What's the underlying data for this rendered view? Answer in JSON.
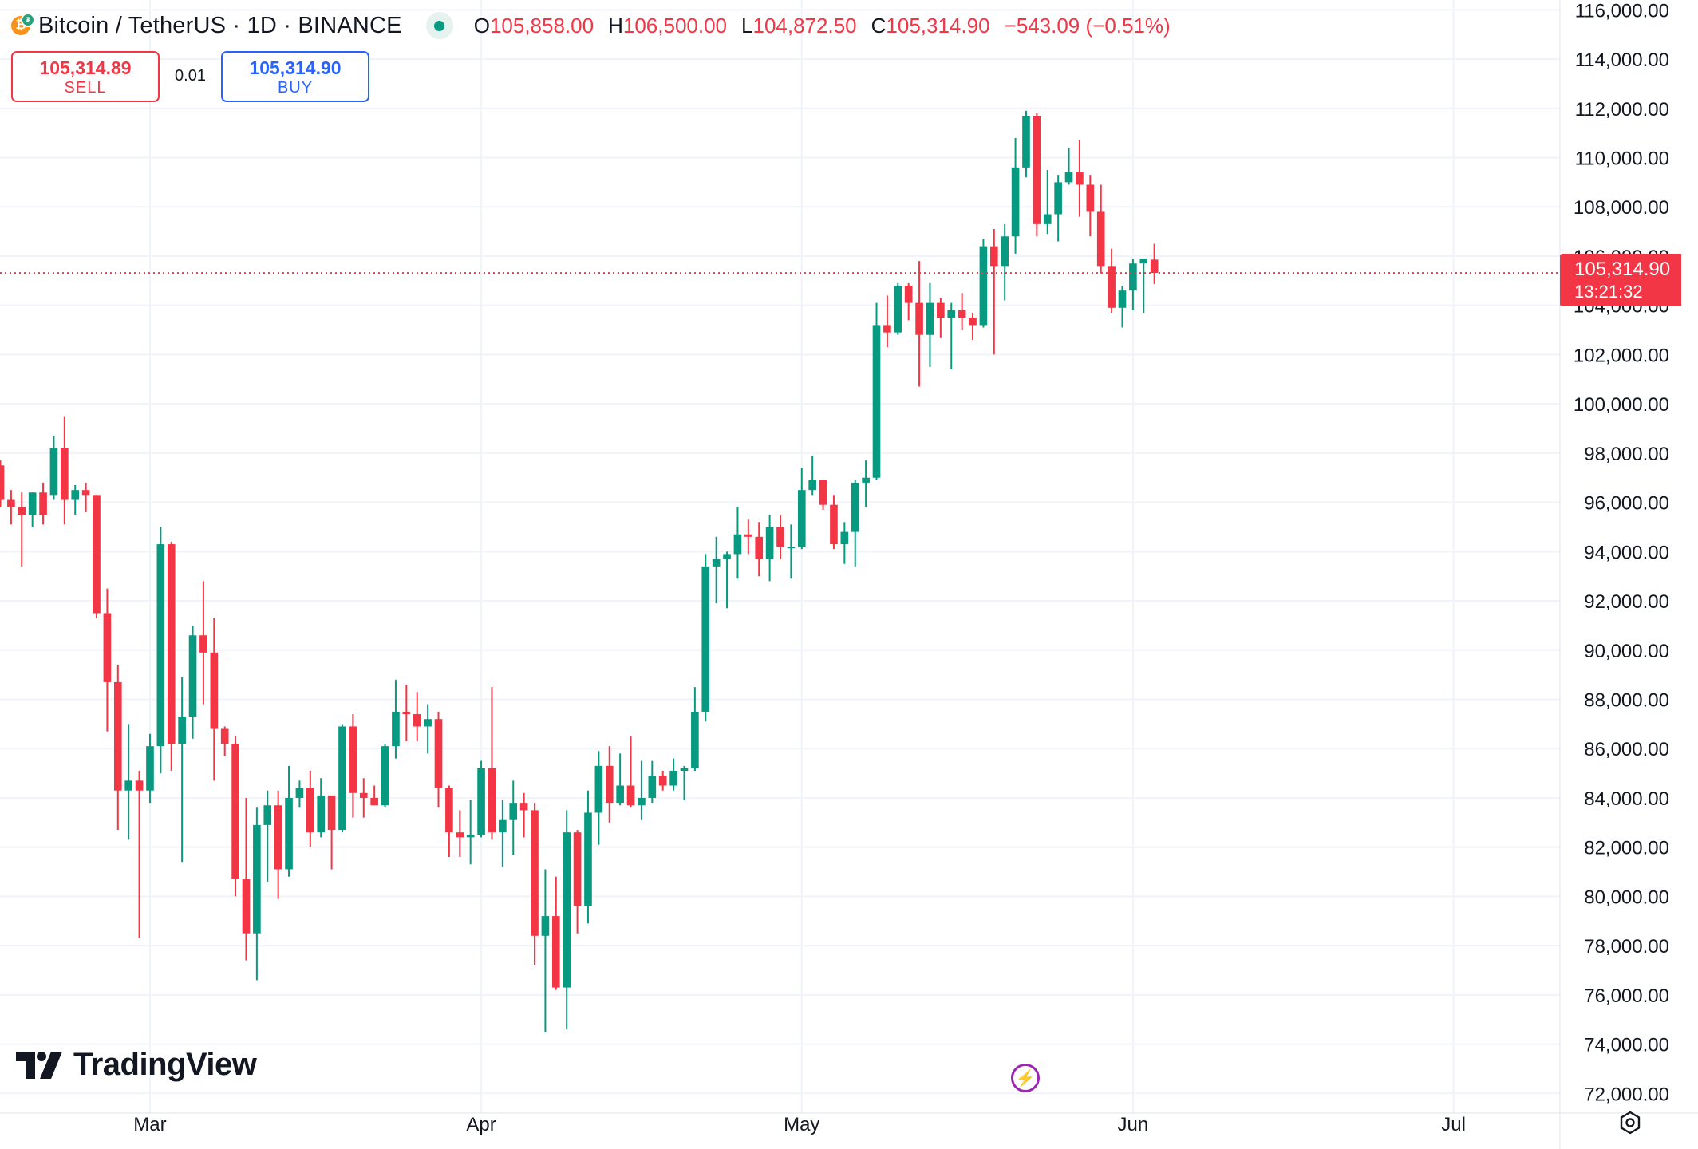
{
  "header": {
    "symbol_title": "Bitcoin / TetherUS · 1D · BINANCE",
    "ohlc": [
      {
        "k": "O",
        "v": "105,858.00"
      },
      {
        "k": "H",
        "v": "106,500.00"
      },
      {
        "k": "L",
        "v": "104,872.50"
      },
      {
        "k": "C",
        "v": "105,314.90"
      }
    ],
    "change": "−543.09 (−0.51%)"
  },
  "trade": {
    "sell_price": "105,314.89",
    "sell_label": "SELL",
    "quantity": "0.01",
    "buy_price": "105,314.90",
    "buy_label": "BUY"
  },
  "price_tag": {
    "price": "105,314.90",
    "countdown": "13:21:32"
  },
  "branding": {
    "logo_text": "TradingView"
  },
  "colors": {
    "up": "#089981",
    "down": "#f23645",
    "grid": "#f0f3fa",
    "axis_text": "#131722",
    "last_price": "#f23645"
  },
  "icons": [
    "bitcoin-icon",
    "live-status-icon",
    "tradingview-logo-icon",
    "flash-event-icon",
    "settings-gear-icon"
  ],
  "chart_data": {
    "type": "candlestick",
    "title": "Bitcoin / TetherUS · 1D · BINANCE",
    "ylim": [
      71200,
      116400
    ],
    "y_ticks": [
      72000,
      74000,
      76000,
      78000,
      80000,
      82000,
      84000,
      86000,
      88000,
      90000,
      92000,
      94000,
      96000,
      98000,
      100000,
      102000,
      104000,
      106000,
      108000,
      110000,
      112000,
      114000,
      116000
    ],
    "y_tick_labels": [
      "72,000.00",
      "74,000.00",
      "76,000.00",
      "78,000.00",
      "80,000.00",
      "82,000.00",
      "84,000.00",
      "86,000.00",
      "88,000.00",
      "90,000.00",
      "92,000.00",
      "94,000.00",
      "96,000.00",
      "98,000.00",
      "100,000.00",
      "102,000.00",
      "104,000.00",
      "106,000.00",
      "108,000.00",
      "110,000.00",
      "112,000.00",
      "114,000.00",
      "116,000.00"
    ],
    "x_range": [
      "2025-02-15",
      "2025-07-11"
    ],
    "x_ticks": [
      {
        "label": "Mar",
        "date": "2025-03-01"
      },
      {
        "label": "Apr",
        "date": "2025-04-01"
      },
      {
        "label": "May",
        "date": "2025-05-01"
      },
      {
        "label": "Jun",
        "date": "2025-06-01"
      },
      {
        "label": "Jul",
        "date": "2025-07-01"
      }
    ],
    "grid": true,
    "last_price": 105314.9,
    "candles": [
      {
        "d": "2025-02-15",
        "o": 97500,
        "h": 97700,
        "l": 95800,
        "c": 96100
      },
      {
        "d": "2025-02-16",
        "o": 96100,
        "h": 96500,
        "l": 95100,
        "c": 95800
      },
      {
        "d": "2025-02-17",
        "o": 95800,
        "h": 96400,
        "l": 93400,
        "c": 95500
      },
      {
        "d": "2025-02-18",
        "o": 95500,
        "h": 96400,
        "l": 95000,
        "c": 96400
      },
      {
        "d": "2025-02-19",
        "o": 96400,
        "h": 96800,
        "l": 95100,
        "c": 95500
      },
      {
        "d": "2025-02-20",
        "o": 96300,
        "h": 98700,
        "l": 96100,
        "c": 98200
      },
      {
        "d": "2025-02-21",
        "o": 98200,
        "h": 99500,
        "l": 95100,
        "c": 96100
      },
      {
        "d": "2025-02-22",
        "o": 96100,
        "h": 96700,
        "l": 95500,
        "c": 96500
      },
      {
        "d": "2025-02-23",
        "o": 96500,
        "h": 96800,
        "l": 95600,
        "c": 96300
      },
      {
        "d": "2025-02-24",
        "o": 96300,
        "h": 96300,
        "l": 91300,
        "c": 91500
      },
      {
        "d": "2025-02-25",
        "o": 91500,
        "h": 92500,
        "l": 86700,
        "c": 88700
      },
      {
        "d": "2025-02-26",
        "o": 88700,
        "h": 89400,
        "l": 82700,
        "c": 84300
      },
      {
        "d": "2025-02-27",
        "o": 84300,
        "h": 87000,
        "l": 82300,
        "c": 84700
      },
      {
        "d": "2025-02-28",
        "o": 84700,
        "h": 85100,
        "l": 78300,
        "c": 84300
      },
      {
        "d": "2025-03-01",
        "o": 84300,
        "h": 86600,
        "l": 83800,
        "c": 86100
      },
      {
        "d": "2025-03-02",
        "o": 86100,
        "h": 95000,
        "l": 85000,
        "c": 94300
      },
      {
        "d": "2025-03-03",
        "o": 94300,
        "h": 94400,
        "l": 85100,
        "c": 86200
      },
      {
        "d": "2025-03-04",
        "o": 86200,
        "h": 88900,
        "l": 81400,
        "c": 87300
      },
      {
        "d": "2025-03-05",
        "o": 87300,
        "h": 91000,
        "l": 86400,
        "c": 90600
      },
      {
        "d": "2025-03-06",
        "o": 90600,
        "h": 92800,
        "l": 87800,
        "c": 89900
      },
      {
        "d": "2025-03-07",
        "o": 89900,
        "h": 91300,
        "l": 84700,
        "c": 86800
      },
      {
        "d": "2025-03-08",
        "o": 86800,
        "h": 86900,
        "l": 85700,
        "c": 86200
      },
      {
        "d": "2025-03-09",
        "o": 86200,
        "h": 86500,
        "l": 80000,
        "c": 80700
      },
      {
        "d": "2025-03-10",
        "o": 80700,
        "h": 84000,
        "l": 77400,
        "c": 78500
      },
      {
        "d": "2025-03-11",
        "o": 78500,
        "h": 83600,
        "l": 76600,
        "c": 82900
      },
      {
        "d": "2025-03-12",
        "o": 82900,
        "h": 84300,
        "l": 80600,
        "c": 83700
      },
      {
        "d": "2025-03-13",
        "o": 83700,
        "h": 84300,
        "l": 79900,
        "c": 81100
      },
      {
        "d": "2025-03-14",
        "o": 81100,
        "h": 85300,
        "l": 80800,
        "c": 84000
      },
      {
        "d": "2025-03-15",
        "o": 84000,
        "h": 84700,
        "l": 83600,
        "c": 84400
      },
      {
        "d": "2025-03-16",
        "o": 84400,
        "h": 85100,
        "l": 82000,
        "c": 82600
      },
      {
        "d": "2025-03-17",
        "o": 82600,
        "h": 84800,
        "l": 82400,
        "c": 84100
      },
      {
        "d": "2025-03-18",
        "o": 84100,
        "h": 84100,
        "l": 81100,
        "c": 82700
      },
      {
        "d": "2025-03-19",
        "o": 82700,
        "h": 87000,
        "l": 82600,
        "c": 86900
      },
      {
        "d": "2025-03-20",
        "o": 86900,
        "h": 87400,
        "l": 83200,
        "c": 84200
      },
      {
        "d": "2025-03-21",
        "o": 84200,
        "h": 84800,
        "l": 83200,
        "c": 84000
      },
      {
        "d": "2025-03-22",
        "o": 84000,
        "h": 84500,
        "l": 83700,
        "c": 83700
      },
      {
        "d": "2025-03-23",
        "o": 83700,
        "h": 86200,
        "l": 83600,
        "c": 86100
      },
      {
        "d": "2025-03-24",
        "o": 86100,
        "h": 88800,
        "l": 85600,
        "c": 87500
      },
      {
        "d": "2025-03-25",
        "o": 87500,
        "h": 88600,
        "l": 86300,
        "c": 87400
      },
      {
        "d": "2025-03-26",
        "o": 87400,
        "h": 88300,
        "l": 86300,
        "c": 86900
      },
      {
        "d": "2025-03-27",
        "o": 86900,
        "h": 87800,
        "l": 85800,
        "c": 87200
      },
      {
        "d": "2025-03-28",
        "o": 87200,
        "h": 87500,
        "l": 83600,
        "c": 84400
      },
      {
        "d": "2025-03-29",
        "o": 84400,
        "h": 84500,
        "l": 81600,
        "c": 82600
      },
      {
        "d": "2025-03-30",
        "o": 82600,
        "h": 83500,
        "l": 81600,
        "c": 82400
      },
      {
        "d": "2025-03-31",
        "o": 82400,
        "h": 83900,
        "l": 81300,
        "c": 82500
      },
      {
        "d": "2025-04-01",
        "o": 82500,
        "h": 85500,
        "l": 82400,
        "c": 85200
      },
      {
        "d": "2025-04-02",
        "o": 85200,
        "h": 88500,
        "l": 82300,
        "c": 82600
      },
      {
        "d": "2025-04-03",
        "o": 82600,
        "h": 83900,
        "l": 81200,
        "c": 83100
      },
      {
        "d": "2025-04-04",
        "o": 83100,
        "h": 84700,
        "l": 81700,
        "c": 83800
      },
      {
        "d": "2025-04-05",
        "o": 83800,
        "h": 84200,
        "l": 82400,
        "c": 83500
      },
      {
        "d": "2025-04-06",
        "o": 83500,
        "h": 83800,
        "l": 77200,
        "c": 78400
      },
      {
        "d": "2025-04-07",
        "o": 78400,
        "h": 81100,
        "l": 74500,
        "c": 79200
      },
      {
        "d": "2025-04-08",
        "o": 79200,
        "h": 80800,
        "l": 76200,
        "c": 76300
      },
      {
        "d": "2025-04-09",
        "o": 76300,
        "h": 83500,
        "l": 74600,
        "c": 82600
      },
      {
        "d": "2025-04-10",
        "o": 82600,
        "h": 82700,
        "l": 78500,
        "c": 79600
      },
      {
        "d": "2025-04-11",
        "o": 79600,
        "h": 84300,
        "l": 78900,
        "c": 83400
      },
      {
        "d": "2025-04-12",
        "o": 83400,
        "h": 85900,
        "l": 82100,
        "c": 85300
      },
      {
        "d": "2025-04-13",
        "o": 85300,
        "h": 86100,
        "l": 83000,
        "c": 83800
      },
      {
        "d": "2025-04-14",
        "o": 83800,
        "h": 85800,
        "l": 83700,
        "c": 84500
      },
      {
        "d": "2025-04-15",
        "o": 84500,
        "h": 86500,
        "l": 83600,
        "c": 83700
      },
      {
        "d": "2025-04-16",
        "o": 83700,
        "h": 85500,
        "l": 83100,
        "c": 84000
      },
      {
        "d": "2025-04-17",
        "o": 84000,
        "h": 85500,
        "l": 83800,
        "c": 84900
      },
      {
        "d": "2025-04-18",
        "o": 84900,
        "h": 85100,
        "l": 84300,
        "c": 84500
      },
      {
        "d": "2025-04-19",
        "o": 84500,
        "h": 85600,
        "l": 84300,
        "c": 85100
      },
      {
        "d": "2025-04-20",
        "o": 85100,
        "h": 85300,
        "l": 83900,
        "c": 85200
      },
      {
        "d": "2025-04-21",
        "o": 85200,
        "h": 88500,
        "l": 85100,
        "c": 87500
      },
      {
        "d": "2025-04-22",
        "o": 87500,
        "h": 93900,
        "l": 87100,
        "c": 93400
      },
      {
        "d": "2025-04-23",
        "o": 93400,
        "h": 94600,
        "l": 91900,
        "c": 93700
      },
      {
        "d": "2025-04-24",
        "o": 93700,
        "h": 94000,
        "l": 91700,
        "c": 93900
      },
      {
        "d": "2025-04-25",
        "o": 93900,
        "h": 95800,
        "l": 92900,
        "c": 94700
      },
      {
        "d": "2025-04-26",
        "o": 94700,
        "h": 95300,
        "l": 93900,
        "c": 94600
      },
      {
        "d": "2025-04-27",
        "o": 94600,
        "h": 95200,
        "l": 93000,
        "c": 93700
      },
      {
        "d": "2025-04-28",
        "o": 93700,
        "h": 95500,
        "l": 92800,
        "c": 95000
      },
      {
        "d": "2025-04-29",
        "o": 95000,
        "h": 95500,
        "l": 93700,
        "c": 94200
      },
      {
        "d": "2025-04-30",
        "o": 94200,
        "h": 95100,
        "l": 92900,
        "c": 94200
      },
      {
        "d": "2025-05-01",
        "o": 94200,
        "h": 97400,
        "l": 94100,
        "c": 96500
      },
      {
        "d": "2025-05-02",
        "o": 96500,
        "h": 97900,
        "l": 96300,
        "c": 96900
      },
      {
        "d": "2025-05-03",
        "o": 96900,
        "h": 96900,
        "l": 95700,
        "c": 95900
      },
      {
        "d": "2025-05-04",
        "o": 95900,
        "h": 96300,
        "l": 94100,
        "c": 94300
      },
      {
        "d": "2025-05-05",
        "o": 94300,
        "h": 95200,
        "l": 93500,
        "c": 94800
      },
      {
        "d": "2025-05-06",
        "o": 94800,
        "h": 96900,
        "l": 93400,
        "c": 96800
      },
      {
        "d": "2025-05-07",
        "o": 96800,
        "h": 97700,
        "l": 95800,
        "c": 97000
      },
      {
        "d": "2025-05-08",
        "o": 97000,
        "h": 104100,
        "l": 96900,
        "c": 103200
      },
      {
        "d": "2025-05-09",
        "o": 103200,
        "h": 104400,
        "l": 102300,
        "c": 102900
      },
      {
        "d": "2025-05-10",
        "o": 102900,
        "h": 104900,
        "l": 102800,
        "c": 104800
      },
      {
        "d": "2025-05-11",
        "o": 104800,
        "h": 104900,
        "l": 103400,
        "c": 104100
      },
      {
        "d": "2025-05-12",
        "o": 104100,
        "h": 105800,
        "l": 100700,
        "c": 102800
      },
      {
        "d": "2025-05-13",
        "o": 102800,
        "h": 104900,
        "l": 101500,
        "c": 104100
      },
      {
        "d": "2025-05-14",
        "o": 104100,
        "h": 104300,
        "l": 102700,
        "c": 103500
      },
      {
        "d": "2025-05-15",
        "o": 103500,
        "h": 104100,
        "l": 101400,
        "c": 103800
      },
      {
        "d": "2025-05-16",
        "o": 103800,
        "h": 104500,
        "l": 103000,
        "c": 103500
      },
      {
        "d": "2025-05-17",
        "o": 103500,
        "h": 103700,
        "l": 102600,
        "c": 103200
      },
      {
        "d": "2025-05-18",
        "o": 103200,
        "h": 106700,
        "l": 103100,
        "c": 106400
      },
      {
        "d": "2025-05-19",
        "o": 106400,
        "h": 107100,
        "l": 102000,
        "c": 105600
      },
      {
        "d": "2025-05-20",
        "o": 105600,
        "h": 107300,
        "l": 104200,
        "c": 106800
      },
      {
        "d": "2025-05-21",
        "o": 106800,
        "h": 110800,
        "l": 106100,
        "c": 109600
      },
      {
        "d": "2025-05-22",
        "o": 109600,
        "h": 111900,
        "l": 109200,
        "c": 111700
      },
      {
        "d": "2025-05-23",
        "o": 111700,
        "h": 111800,
        "l": 106800,
        "c": 107300
      },
      {
        "d": "2025-05-24",
        "o": 107300,
        "h": 109500,
        "l": 106900,
        "c": 107700
      },
      {
        "d": "2025-05-25",
        "o": 107700,
        "h": 109300,
        "l": 106600,
        "c": 109000
      },
      {
        "d": "2025-05-26",
        "o": 109000,
        "h": 110400,
        "l": 108900,
        "c": 109400
      },
      {
        "d": "2025-05-27",
        "o": 109400,
        "h": 110700,
        "l": 107600,
        "c": 108900
      },
      {
        "d": "2025-05-28",
        "o": 108900,
        "h": 109300,
        "l": 106800,
        "c": 107800
      },
      {
        "d": "2025-05-29",
        "o": 107800,
        "h": 108900,
        "l": 105300,
        "c": 105600
      },
      {
        "d": "2025-05-30",
        "o": 105600,
        "h": 106300,
        "l": 103700,
        "c": 103900
      },
      {
        "d": "2025-05-31",
        "o": 103900,
        "h": 104800,
        "l": 103100,
        "c": 104600
      },
      {
        "d": "2025-06-01",
        "o": 104600,
        "h": 105900,
        "l": 103800,
        "c": 105700
      },
      {
        "d": "2025-06-02",
        "o": 105700,
        "h": 105900,
        "l": 103700,
        "c": 105900
      },
      {
        "d": "2025-06-03",
        "o": 105858,
        "h": 106500,
        "l": 104872.5,
        "c": 105314.9
      }
    ]
  }
}
